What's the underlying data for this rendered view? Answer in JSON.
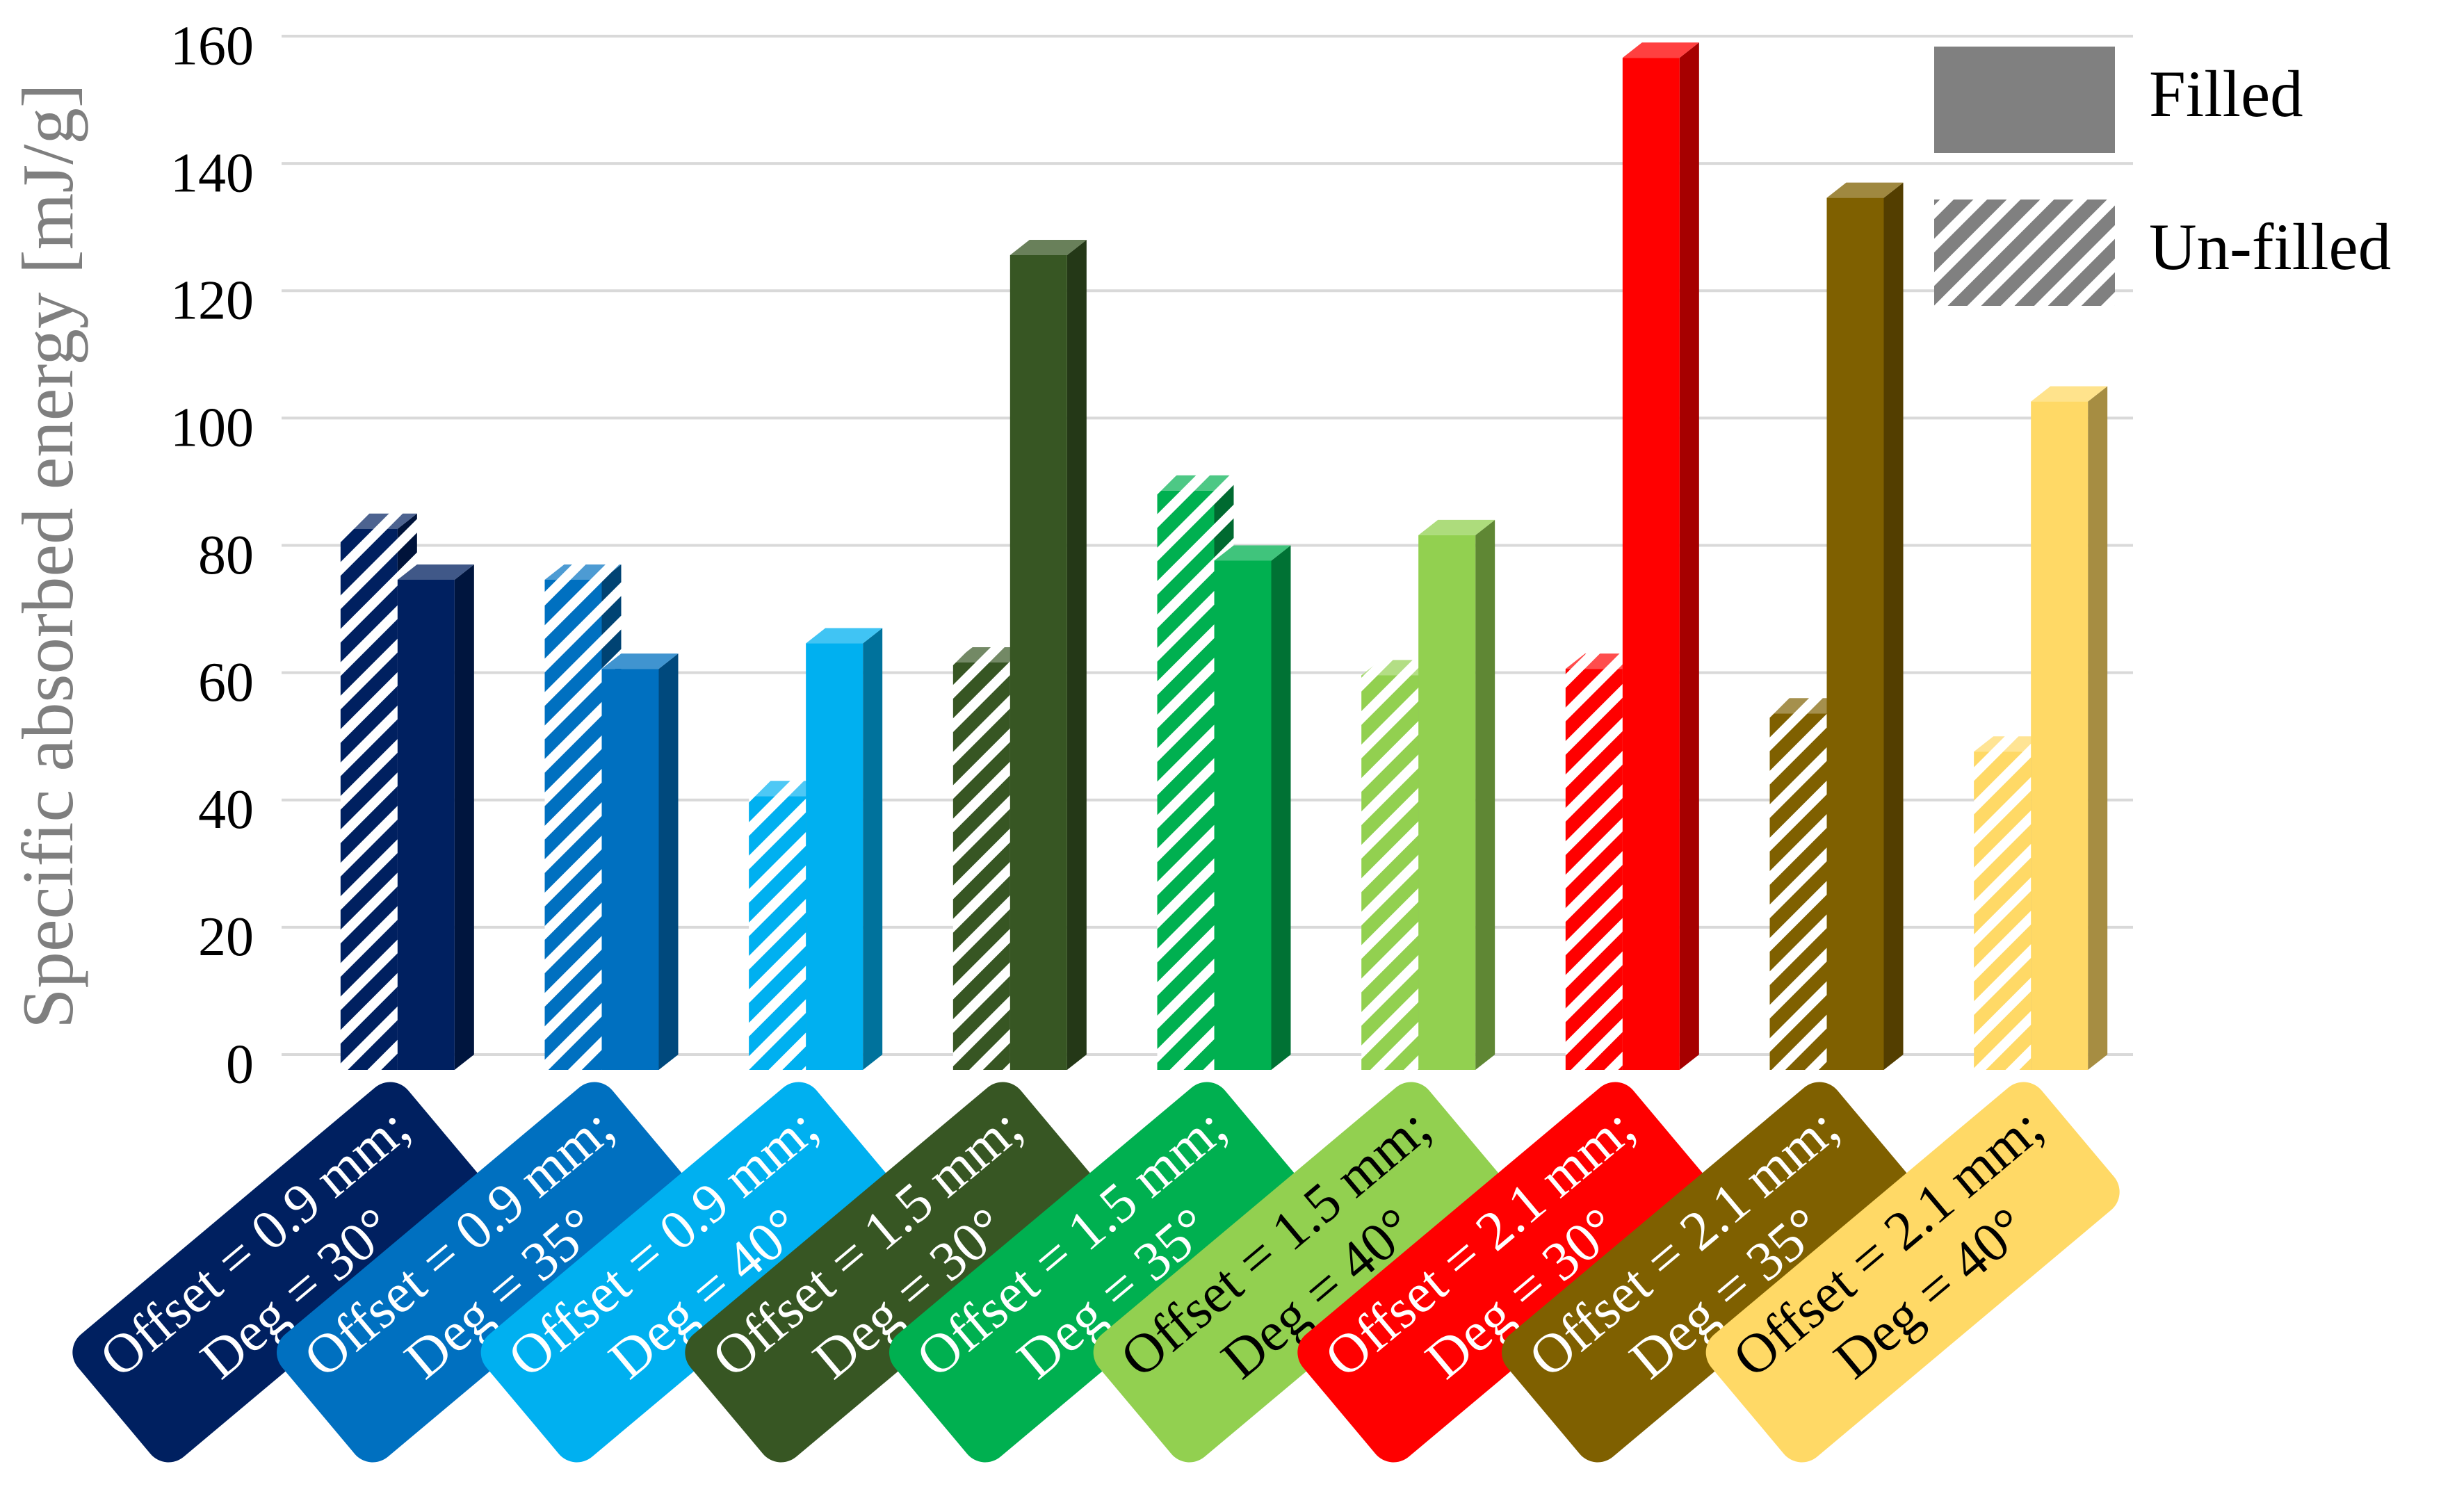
{
  "chart_data": {
    "type": "bar3d",
    "y_label": "Specific absorbed energy [mJ/g]",
    "categories": [
      [
        "Offset = 0.9 mm;",
        "Deg = 30°"
      ],
      [
        "Offset = 0.9 mm;",
        "Deg = 35°"
      ],
      [
        "Offset = 0.9 mm;",
        "Deg = 40°"
      ],
      [
        "Offset = 1.5 mm;",
        "Deg = 30°"
      ],
      [
        "Offset = 1.5 mm;",
        "Deg = 35°"
      ],
      [
        "Offset = 1.5 mm;",
        "Deg = 40°"
      ],
      [
        "Offset = 2.1 mm;",
        "Deg = 30°"
      ],
      [
        "Offset = 2.1 mm;",
        "Deg = 35°"
      ],
      [
        "Offset = 2.1 mm;",
        "Deg = 40°"
      ]
    ],
    "colors": [
      "#002060",
      "#0070c0",
      "#00b0f0",
      "#375623",
      "#00b050",
      "#92d050",
      "#ff0000",
      "#7f6000",
      "#ffd966"
    ],
    "series": [
      {
        "name": "Un-filled",
        "hatched": true,
        "color": "#808080",
        "values": [
          85,
          77,
          43,
          64,
          91,
          62,
          63,
          56,
          50
        ]
      },
      {
        "name": "Filled",
        "hatched": false,
        "color": "#808080",
        "values": [
          77,
          63,
          67,
          128,
          80,
          84,
          159,
          137,
          105
        ]
      }
    ],
    "ylim": [
      0,
      160
    ],
    "yticks": [
      0,
      20,
      40,
      60,
      80,
      100,
      120,
      140,
      160
    ],
    "grid": true,
    "legend": "upper-right"
  }
}
